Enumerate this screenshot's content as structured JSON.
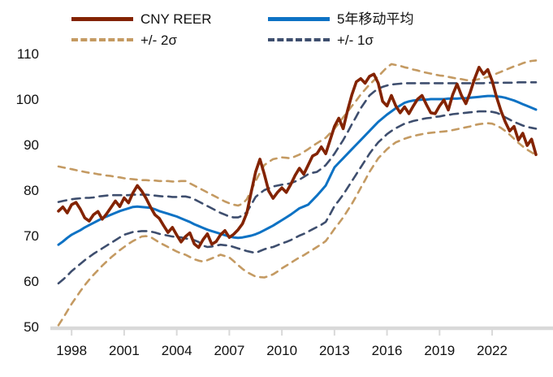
{
  "legend": {
    "items": [
      {
        "label": "CNY REER",
        "color": "#832300",
        "style": "solid"
      },
      {
        "label": "5年移动平均",
        "color": "#0d72c4",
        "style": "solid"
      },
      {
        "label": "+/- 2σ",
        "color": "#c49a62",
        "style": "dashed"
      },
      {
        "label": "+/- 1σ",
        "color": "#3e4e6e",
        "style": "dashed"
      }
    ]
  },
  "chart_data": {
    "type": "line",
    "title": "",
    "xlabel": "",
    "ylabel": "",
    "grid": false,
    "legend_position": "top",
    "axis_color": "#d9d9d9",
    "text_color": "#111111",
    "x_ticks": [
      1998,
      2001,
      2004,
      2007,
      2010,
      2013,
      2016,
      2019,
      2022
    ],
    "y_ticks": [
      50,
      60,
      70,
      80,
      90,
      100,
      110
    ],
    "xlim": [
      1997.25,
      2024.5
    ],
    "ylim": [
      50,
      110
    ],
    "x_start": 1997.25,
    "x_step": 0.25,
    "series": [
      {
        "name": "+/- 2σ upper",
        "color": "#c49a62",
        "width": 2.6,
        "dash": "8 7",
        "values": [
          85.2,
          85.0,
          84.8,
          84.6,
          84.4,
          84.2,
          84.0,
          83.8,
          83.7,
          83.5,
          83.4,
          83.2,
          83.1,
          82.9,
          82.8,
          82.6,
          82.5,
          82.4,
          82.3,
          82.2,
          82.2,
          82.1,
          82.1,
          82.0,
          82.0,
          82.0,
          81.9,
          81.9,
          82.0,
          82.0,
          81.5,
          81.0,
          80.5,
          80.0,
          79.5,
          79.0,
          78.5,
          78.0,
          77.5,
          77.1,
          76.8,
          76.6,
          77.0,
          78.0,
          80.0,
          82.0,
          83.8,
          85.5,
          86.2,
          86.8,
          87.0,
          87.2,
          87.1,
          87.0,
          87.4,
          87.8,
          88.4,
          89.0,
          89.7,
          90.3,
          90.9,
          91.5,
          92.5,
          93.5,
          94.7,
          96.0,
          97.2,
          98.5,
          99.7,
          101.0,
          102.1,
          103.2,
          104.1,
          105.0,
          106.0,
          107.0,
          107.7,
          107.5,
          107.3,
          107.0,
          106.8,
          106.5,
          106.3,
          106.0,
          105.8,
          105.6,
          105.4,
          105.2,
          105.1,
          104.9,
          104.7,
          104.5,
          104.4,
          104.2,
          104.1,
          104.2,
          104.4,
          104.6,
          104.9,
          105.2,
          105.6,
          106.0,
          106.4,
          106.8,
          107.2,
          107.5,
          107.9,
          108.2,
          108.4,
          108.5
        ]
      },
      {
        "name": "+/- 2σ lower",
        "color": "#c49a62",
        "width": 2.6,
        "dash": "8 7",
        "values": [
          50.3,
          51.8,
          53.4,
          55.0,
          56.4,
          57.8,
          59.1,
          60.3,
          61.4,
          62.4,
          63.4,
          64.3,
          65.2,
          66.0,
          66.8,
          67.5,
          68.2,
          68.8,
          69.3,
          69.8,
          69.9,
          69.7,
          69.1,
          68.5,
          68.0,
          67.5,
          67.0,
          66.5,
          66.1,
          65.8,
          65.3,
          64.8,
          64.5,
          64.3,
          64.6,
          65.0,
          65.4,
          65.8,
          65.5,
          65.2,
          64.4,
          63.5,
          62.7,
          62.0,
          61.5,
          61.0,
          60.9,
          60.8,
          61.1,
          61.5,
          62.1,
          62.8,
          63.4,
          64.0,
          64.6,
          65.2,
          65.7,
          66.3,
          66.9,
          67.5,
          68.1,
          68.8,
          70.1,
          71.5,
          72.7,
          74.0,
          75.5,
          77.0,
          78.7,
          80.5,
          82.2,
          84.0,
          85.5,
          87.0,
          88.0,
          89.0,
          89.8,
          90.5,
          90.9,
          91.3,
          91.6,
          91.9,
          92.1,
          92.3,
          92.5,
          92.6,
          92.7,
          92.8,
          92.9,
          93.0,
          93.2,
          93.4,
          93.6,
          93.8,
          94.0,
          94.3,
          94.5,
          94.6,
          94.7,
          94.6,
          94.2,
          93.7,
          93.0,
          92.2,
          91.3,
          90.4,
          89.6,
          88.9,
          88.3,
          87.7
        ]
      },
      {
        "name": "+/- 1σ upper",
        "color": "#3e4e6e",
        "width": 2.6,
        "dash": "10 7",
        "values": [
          77.4,
          77.6,
          77.8,
          78.0,
          78.1,
          78.2,
          78.3,
          78.3,
          78.4,
          78.6,
          78.7,
          78.8,
          78.9,
          78.9,
          78.9,
          78.9,
          78.9,
          79.0,
          79.0,
          79.0,
          79.0,
          78.9,
          78.8,
          78.7,
          78.6,
          78.6,
          78.5,
          78.5,
          78.6,
          78.6,
          78.4,
          78.0,
          77.5,
          77.0,
          76.5,
          76.0,
          75.5,
          75.0,
          74.6,
          74.2,
          74.0,
          74.0,
          74.4,
          75.2,
          76.8,
          78.5,
          79.3,
          80.0,
          80.4,
          80.8,
          81.0,
          81.2,
          81.3,
          81.5,
          81.9,
          82.3,
          82.9,
          83.5,
          83.8,
          84.0,
          84.7,
          85.5,
          86.7,
          88.0,
          89.5,
          91.0,
          92.7,
          94.5,
          96.2,
          98.0,
          99.4,
          100.8,
          101.6,
          102.3,
          102.7,
          103.0,
          103.2,
          103.3,
          103.4,
          103.5,
          103.5,
          103.5,
          103.5,
          103.5,
          103.5,
          103.5,
          103.5,
          103.5,
          103.5,
          103.5,
          103.5,
          103.5,
          103.5,
          103.5,
          103.5,
          103.5,
          103.5,
          103.5,
          103.6,
          103.6,
          103.6,
          103.6,
          103.6,
          103.6,
          103.6,
          103.7,
          103.7,
          103.7,
          103.7,
          103.7
        ]
      },
      {
        "name": "+/- 1σ lower",
        "color": "#3e4e6e",
        "width": 2.6,
        "dash": "10 7",
        "values": [
          59.5,
          60.3,
          61.2,
          62.2,
          63.0,
          63.8,
          64.6,
          65.3,
          66.0,
          66.6,
          67.2,
          67.8,
          68.4,
          69.0,
          69.6,
          70.2,
          70.5,
          70.8,
          70.9,
          71.0,
          71.0,
          70.9,
          70.7,
          70.4,
          70.2,
          70.0,
          69.8,
          69.7,
          69.6,
          69.4,
          69.2,
          69.0,
          68.6,
          67.8,
          67.5,
          67.6,
          67.8,
          68.0,
          67.9,
          67.8,
          67.5,
          67.2,
          66.9,
          66.6,
          66.4,
          66.2,
          66.6,
          67.0,
          67.3,
          67.5,
          67.9,
          68.3,
          68.6,
          69.0,
          69.5,
          70.0,
          70.4,
          70.9,
          71.4,
          71.9,
          72.4,
          73.0,
          74.7,
          76.5,
          77.7,
          79.0,
          80.5,
          82.0,
          83.5,
          85.0,
          86.5,
          88.0,
          89.3,
          90.5,
          91.4,
          92.3,
          93.0,
          93.6,
          94.1,
          94.6,
          94.9,
          95.2,
          95.4,
          95.6,
          95.8,
          95.9,
          96.1,
          96.2,
          96.4,
          96.5,
          96.7,
          96.8,
          96.9,
          97.0,
          97.1,
          97.2,
          97.3,
          97.3,
          97.3,
          97.2,
          97.0,
          96.6,
          96.0,
          95.5,
          95.0,
          94.6,
          94.2,
          93.9,
          93.7,
          93.5
        ]
      },
      {
        "name": "5年移动平均",
        "color": "#0d72c4",
        "width": 3.0,
        "dash": null,
        "values": [
          68.0,
          68.7,
          69.5,
          70.2,
          70.7,
          71.2,
          71.8,
          72.3,
          72.8,
          73.3,
          73.8,
          74.2,
          74.6,
          75.0,
          75.4,
          75.7,
          76.0,
          76.3,
          76.4,
          76.3,
          76.2,
          76.1,
          75.8,
          75.4,
          75.1,
          74.8,
          74.5,
          74.2,
          73.8,
          73.4,
          73.0,
          72.5,
          72.1,
          71.7,
          71.3,
          71.0,
          70.7,
          70.4,
          70.1,
          69.8,
          69.6,
          69.5,
          69.6,
          69.8,
          70.0,
          70.3,
          70.7,
          71.2,
          71.7,
          72.2,
          72.8,
          73.4,
          74.0,
          74.6,
          75.3,
          76.0,
          76.4,
          76.8,
          77.8,
          78.8,
          79.9,
          81.0,
          83.0,
          85.0,
          86.0,
          87.0,
          88.0,
          89.0,
          90.0,
          91.0,
          92.0,
          93.0,
          94.0,
          95.0,
          95.8,
          96.6,
          97.3,
          98.0,
          98.6,
          99.2,
          99.5,
          99.7,
          99.8,
          99.9,
          99.9,
          100.0,
          100.0,
          100.0,
          100.0,
          100.1,
          100.1,
          100.1,
          100.2,
          100.2,
          100.3,
          100.4,
          100.5,
          100.6,
          100.7,
          100.7,
          100.6,
          100.5,
          100.3,
          100.0,
          99.7,
          99.3,
          98.9,
          98.5,
          98.1,
          97.7
        ]
      },
      {
        "name": "CNY REER",
        "color": "#832300",
        "width": 3.6,
        "dash": null,
        "values": [
          75.4,
          76.3,
          75.0,
          76.8,
          77.3,
          75.8,
          73.9,
          73.2,
          74.6,
          75.3,
          73.6,
          74.8,
          76.2,
          77.6,
          76.4,
          78.3,
          77.2,
          79.4,
          81.0,
          79.8,
          78.2,
          76.3,
          74.6,
          73.8,
          72.2,
          70.7,
          71.8,
          70.1,
          68.6,
          69.8,
          70.6,
          68.2,
          67.4,
          69.1,
          70.4,
          68.1,
          68.7,
          70.2,
          71.1,
          69.6,
          70.3,
          71.3,
          72.6,
          75.0,
          79.6,
          84.0,
          86.8,
          83.5,
          79.8,
          78.2,
          79.5,
          80.5,
          79.5,
          81.2,
          83.2,
          84.8,
          83.5,
          85.5,
          87.5,
          88.0,
          89.5,
          88.0,
          91.0,
          94.0,
          95.8,
          93.5,
          97.5,
          101.0,
          103.8,
          104.5,
          103.5,
          105.0,
          105.5,
          103.5,
          99.5,
          98.5,
          100.8,
          98.5,
          97.0,
          98.3,
          96.8,
          98.5,
          100.0,
          100.8,
          98.8,
          97.0,
          96.8,
          98.5,
          99.8,
          97.6,
          101.0,
          103.3,
          100.8,
          99.0,
          101.5,
          104.5,
          107.0,
          105.5,
          106.5,
          104.0,
          100.5,
          97.5,
          95.0,
          93.0,
          94.0,
          91.0,
          92.5,
          89.8,
          91.2,
          87.8
        ]
      }
    ]
  }
}
